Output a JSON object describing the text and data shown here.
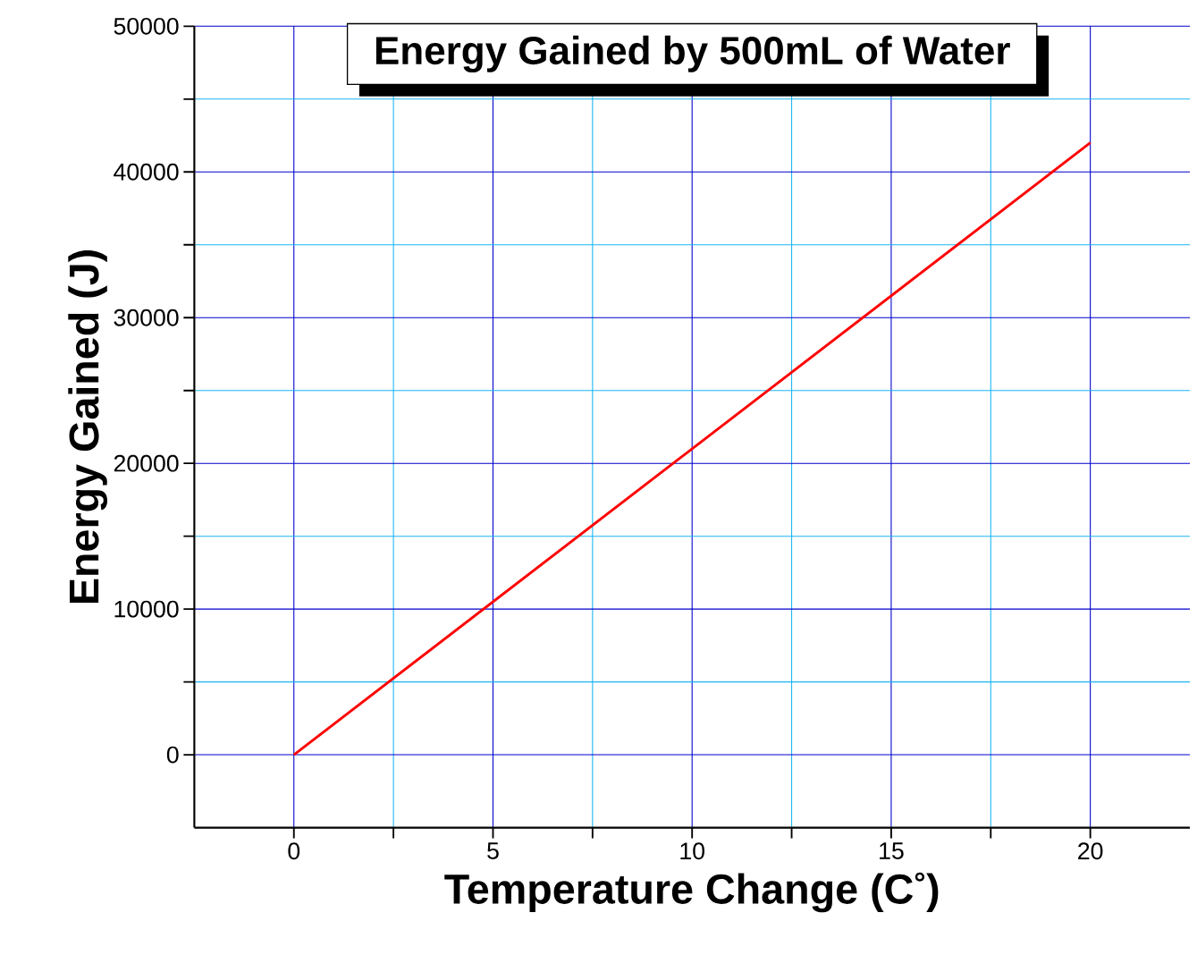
{
  "chart_data": {
    "type": "line",
    "title": "Energy Gained by 500mL of Water",
    "xlabel": "Temperature Change (C$^{°}$)",
    "ylabel": "Energy Gained (J)",
    "x": [
      0,
      20
    ],
    "series": [
      {
        "color": "#ff0000",
        "values": [
          0,
          42000
        ]
      }
    ],
    "xlim": [
      -2.5,
      22.5
    ],
    "ylim": [
      -5000,
      50000
    ],
    "xticks": [
      0,
      {
        "value": 2.5,
        "label": null
      },
      5,
      {
        "value": 7.5,
        "label": null
      },
      10,
      {
        "value": 12.5,
        "label": null
      },
      15,
      {
        "value": 17.5,
        "label": null
      },
      20
    ],
    "yticks": [
      0,
      {
        "value": 5000,
        "label": null
      },
      10000,
      {
        "value": 15000,
        "label": null
      },
      20000,
      {
        "value": 25000,
        "label": null
      },
      30000,
      {
        "value": 35000,
        "label": null
      },
      40000,
      {
        "value": 45000,
        "label": null
      },
      50000
    ],
    "grid": true,
    "marker": "none",
    "line_style": "solid"
  }
}
